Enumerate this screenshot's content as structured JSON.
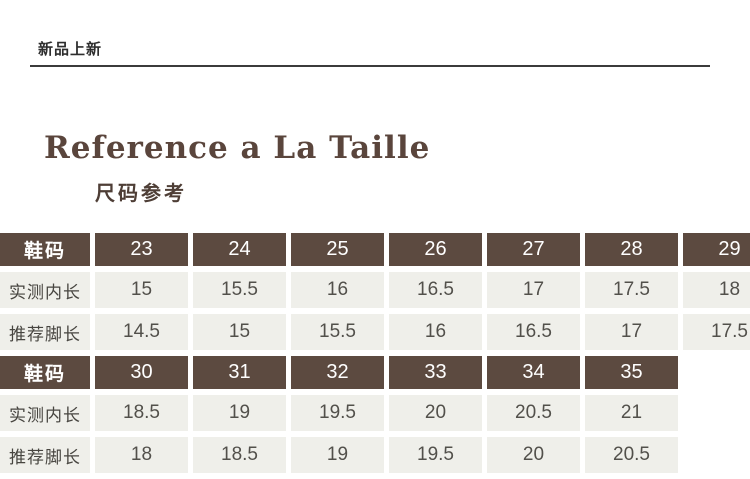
{
  "banner": {
    "label": "新品上新"
  },
  "header": {
    "title": "Reference a La Taille",
    "subtitle": "尺码参考"
  },
  "colors": {
    "header_cell_bg": "#5c4a40",
    "data_cell_bg": "#efefea",
    "title_text": "#5a453c",
    "banner_underline": "#3b3b3b",
    "header_cell_text": "#ffffff",
    "data_cell_text": "#52504b"
  },
  "size_table": {
    "rows": [
      {
        "type": "header",
        "label": "鞋码",
        "cells": [
          "23",
          "24",
          "25",
          "26",
          "27",
          "28",
          "29"
        ]
      },
      {
        "type": "data",
        "label": "实测内长",
        "cells": [
          "15",
          "15.5",
          "16",
          "16.5",
          "17",
          "17.5",
          "18"
        ]
      },
      {
        "type": "data",
        "label": "推荐脚长",
        "cells": [
          "14.5",
          "15",
          "15.5",
          "16",
          "16.5",
          "17",
          "17.5"
        ]
      },
      {
        "type": "header",
        "label": "鞋码",
        "cells": [
          "30",
          "31",
          "32",
          "33",
          "34",
          "35"
        ]
      },
      {
        "type": "data",
        "label": "实测内长",
        "cells": [
          "18.5",
          "19",
          "19.5",
          "20",
          "20.5",
          "21"
        ]
      },
      {
        "type": "data",
        "label": "推荐脚长",
        "cells": [
          "18",
          "18.5",
          "19",
          "19.5",
          "20",
          "20.5"
        ]
      }
    ]
  }
}
